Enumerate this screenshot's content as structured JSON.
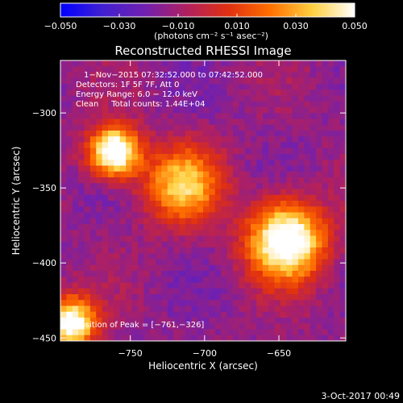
{
  "chart_data": {
    "type": "heatmap",
    "title": "Reconstructed RHESSI Image",
    "xlabel": "Heliocentric X (arcsec)",
    "ylabel": "Heliocentric Y (arcsec)",
    "xlim": [
      -797,
      -605
    ],
    "ylim": [
      -452,
      -265
    ],
    "xticks": [
      -750,
      -700,
      -650
    ],
    "yticks": [
      -300,
      -350,
      -400,
      -450
    ],
    "colorbar": {
      "vmin": -0.05,
      "vmax": 0.05,
      "ticks": [
        "−0.050",
        "−0.030",
        "−0.010",
        "0.010",
        "0.030",
        "0.050"
      ],
      "unit_label": "(photons cm⁻² s⁻¹ asec⁻²)",
      "colors": [
        "#0000ff",
        "#4020d0",
        "#7020b0",
        "#b02060",
        "#e03010",
        "#ff7000",
        "#ffd040",
        "#ffffff"
      ]
    },
    "annotations": [
      "1−Nov−2015 07:32:52.000 to 07:42:52.000",
      "Detectors: 1F 5F 7F, Att 0",
      "Energy Range: 6.0 − 12.0 keV",
      "Clean     Total counts: 1.44E+04"
    ],
    "peak_label": "Position of Peak = [−761,−326]",
    "peak_position": [
      -761,
      -326
    ],
    "sources": [
      {
        "x": -761,
        "y": -326,
        "peak": 0.05,
        "sigma": 12
      },
      {
        "x": -645,
        "y": -385,
        "peak": 0.048,
        "sigma": 18
      },
      {
        "x": -790,
        "y": -440,
        "peak": 0.04,
        "sigma": 12
      },
      {
        "x": -715,
        "y": -348,
        "peak": 0.02,
        "sigma": 18
      }
    ],
    "tick_labels_x": [
      "−750",
      "−700",
      "−650"
    ],
    "tick_labels_y": [
      "−300",
      "−350",
      "−400",
      "−450"
    ]
  },
  "footer": {
    "date": "3-Oct-2017 00:49"
  }
}
